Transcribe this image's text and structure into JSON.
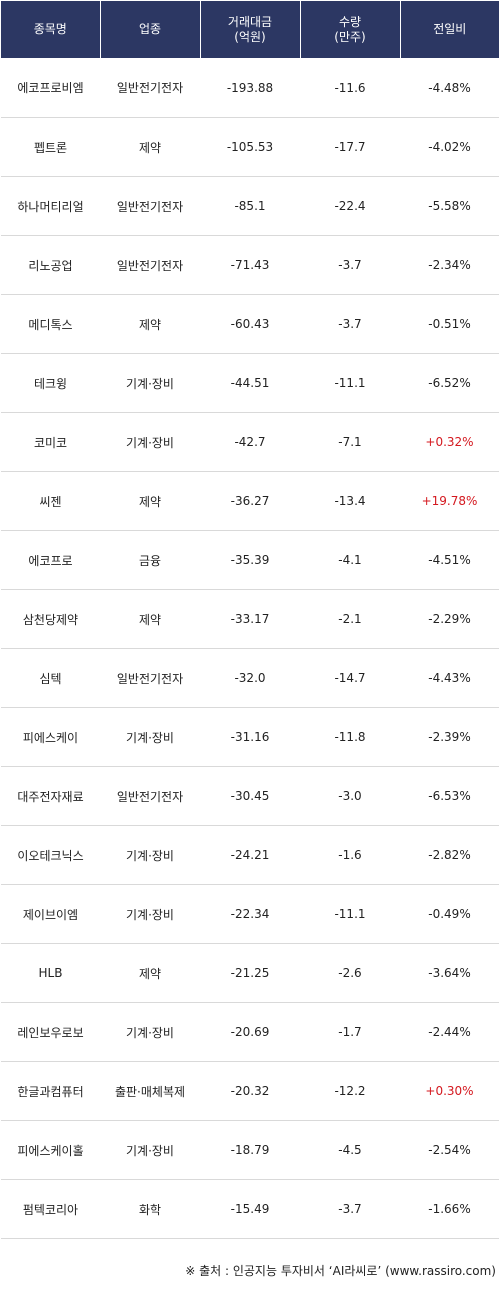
{
  "header": {
    "name": "종목명",
    "sector": "업종",
    "amount_line1": "거래대금",
    "amount_line2": "(억원)",
    "volume_line1": "수량",
    "volume_line2": "(만주)",
    "change": "전일비"
  },
  "rows": [
    {
      "name": "에코프로비엠",
      "sector": "일반전기전자",
      "amount": "-193.88",
      "volume": "-11.6",
      "change": "-4.48%",
      "up": false
    },
    {
      "name": "펩트론",
      "sector": "제약",
      "amount": "-105.53",
      "volume": "-17.7",
      "change": "-4.02%",
      "up": false
    },
    {
      "name": "하나머티리얼",
      "sector": "일반전기전자",
      "amount": "-85.1",
      "volume": "-22.4",
      "change": "-5.58%",
      "up": false
    },
    {
      "name": "리노공업",
      "sector": "일반전기전자",
      "amount": "-71.43",
      "volume": "-3.7",
      "change": "-2.34%",
      "up": false
    },
    {
      "name": "메디톡스",
      "sector": "제약",
      "amount": "-60.43",
      "volume": "-3.7",
      "change": "-0.51%",
      "up": false
    },
    {
      "name": "테크윙",
      "sector": "기계·장비",
      "amount": "-44.51",
      "volume": "-11.1",
      "change": "-6.52%",
      "up": false
    },
    {
      "name": "코미코",
      "sector": "기계·장비",
      "amount": "-42.7",
      "volume": "-7.1",
      "change": "+0.32%",
      "up": true
    },
    {
      "name": "씨젠",
      "sector": "제약",
      "amount": "-36.27",
      "volume": "-13.4",
      "change": "+19.78%",
      "up": true
    },
    {
      "name": "에코프로",
      "sector": "금융",
      "amount": "-35.39",
      "volume": "-4.1",
      "change": "-4.51%",
      "up": false
    },
    {
      "name": "삼천당제약",
      "sector": "제약",
      "amount": "-33.17",
      "volume": "-2.1",
      "change": "-2.29%",
      "up": false
    },
    {
      "name": "심텍",
      "sector": "일반전기전자",
      "amount": "-32.0",
      "volume": "-14.7",
      "change": "-4.43%",
      "up": false
    },
    {
      "name": "피에스케이",
      "sector": "기계·장비",
      "amount": "-31.16",
      "volume": "-11.8",
      "change": "-2.39%",
      "up": false
    },
    {
      "name": "대주전자재료",
      "sector": "일반전기전자",
      "amount": "-30.45",
      "volume": "-3.0",
      "change": "-6.53%",
      "up": false
    },
    {
      "name": "이오테크닉스",
      "sector": "기계·장비",
      "amount": "-24.21",
      "volume": "-1.6",
      "change": "-2.82%",
      "up": false
    },
    {
      "name": "제이브이엠",
      "sector": "기계·장비",
      "amount": "-22.34",
      "volume": "-11.1",
      "change": "-0.49%",
      "up": false
    },
    {
      "name": "HLB",
      "sector": "제약",
      "amount": "-21.25",
      "volume": "-2.6",
      "change": "-3.64%",
      "up": false
    },
    {
      "name": "레인보우로보",
      "sector": "기계·장비",
      "amount": "-20.69",
      "volume": "-1.7",
      "change": "-2.44%",
      "up": false
    },
    {
      "name": "한글과컴퓨터",
      "sector": "출판·매체복제",
      "amount": "-20.32",
      "volume": "-12.2",
      "change": "+0.30%",
      "up": true
    },
    {
      "name": "피에스케이홀",
      "sector": "기계·장비",
      "amount": "-18.79",
      "volume": "-4.5",
      "change": "-2.54%",
      "up": false
    },
    {
      "name": "펌텍코리아",
      "sector": "화학",
      "amount": "-15.49",
      "volume": "-3.7",
      "change": "-1.66%",
      "up": false
    }
  ],
  "source": "※ 출처 : 인공지능 투자비서 ‘AI라씨로’ (www.rassiro.com)",
  "colors": {
    "header_bg": "#2c3763",
    "down": "#2a3aa6",
    "up": "#d4181f"
  }
}
